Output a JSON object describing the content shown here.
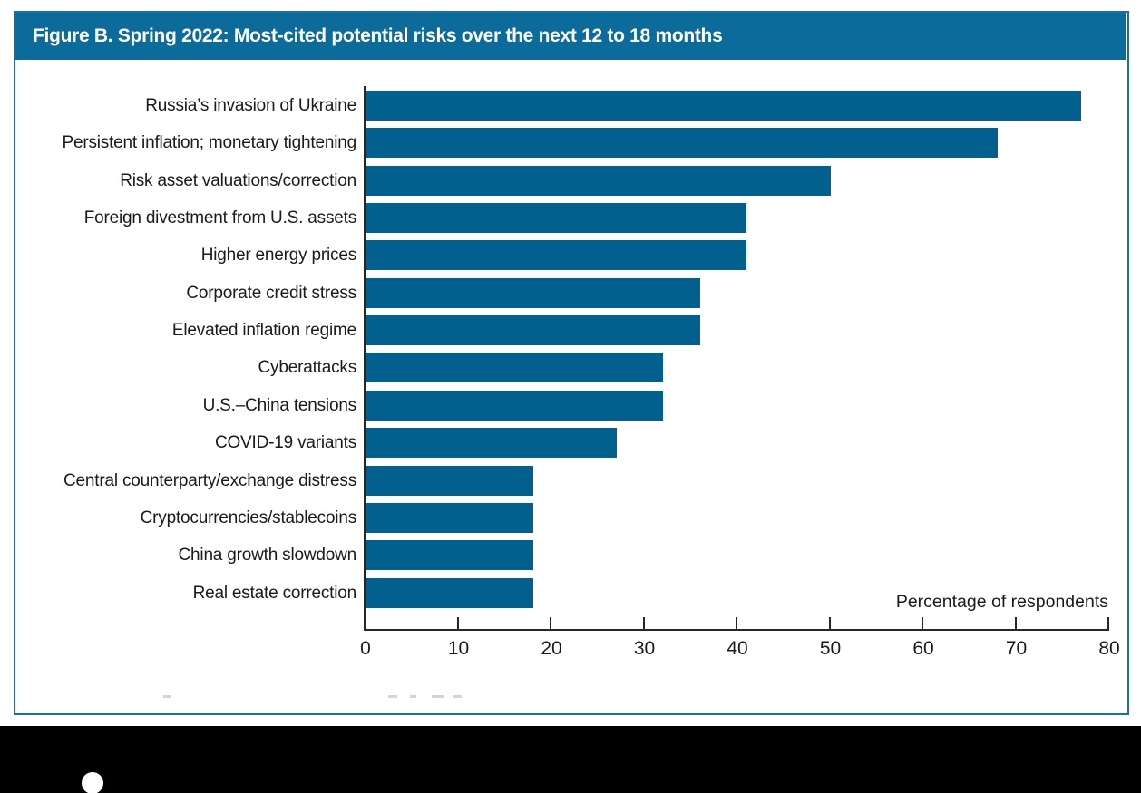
{
  "figure": {
    "title": "Figure B. Spring 2022: Most-cited potential risks over the next 12 to 18 months"
  },
  "chart_data": {
    "type": "bar",
    "orientation": "horizontal",
    "title": "Figure B. Spring 2022: Most-cited potential risks over the next 12 to 18 months",
    "categories": [
      "Russia’s invasion of Ukraine",
      "Persistent inflation; monetary tightening",
      "Risk asset valuations/correction",
      "Foreign divestment from U.S. assets",
      "Higher energy prices",
      "Corporate credit stress",
      "Elevated inflation regime",
      "Cyberattacks",
      "U.S.–China tensions",
      "COVID-19 variants",
      "Central counterparty/exchange distress",
      "Cryptocurrencies/stablecoins",
      "China growth slowdown",
      "Real estate correction"
    ],
    "values": [
      77,
      68,
      50,
      41,
      41,
      36,
      36,
      32,
      32,
      27,
      18,
      18,
      18,
      18
    ],
    "xlabel": "Percentage of respondents",
    "xlim": [
      0,
      80
    ],
    "xticks": [
      0,
      10,
      20,
      30,
      40,
      50,
      60,
      70,
      80
    ],
    "grid": false,
    "legend": false,
    "colors": {
      "bar": "#03608e",
      "header_background": "#0d6b9c",
      "box_border": "#1c6fa0",
      "axis": "#262626",
      "footer_band": "#000000"
    }
  }
}
